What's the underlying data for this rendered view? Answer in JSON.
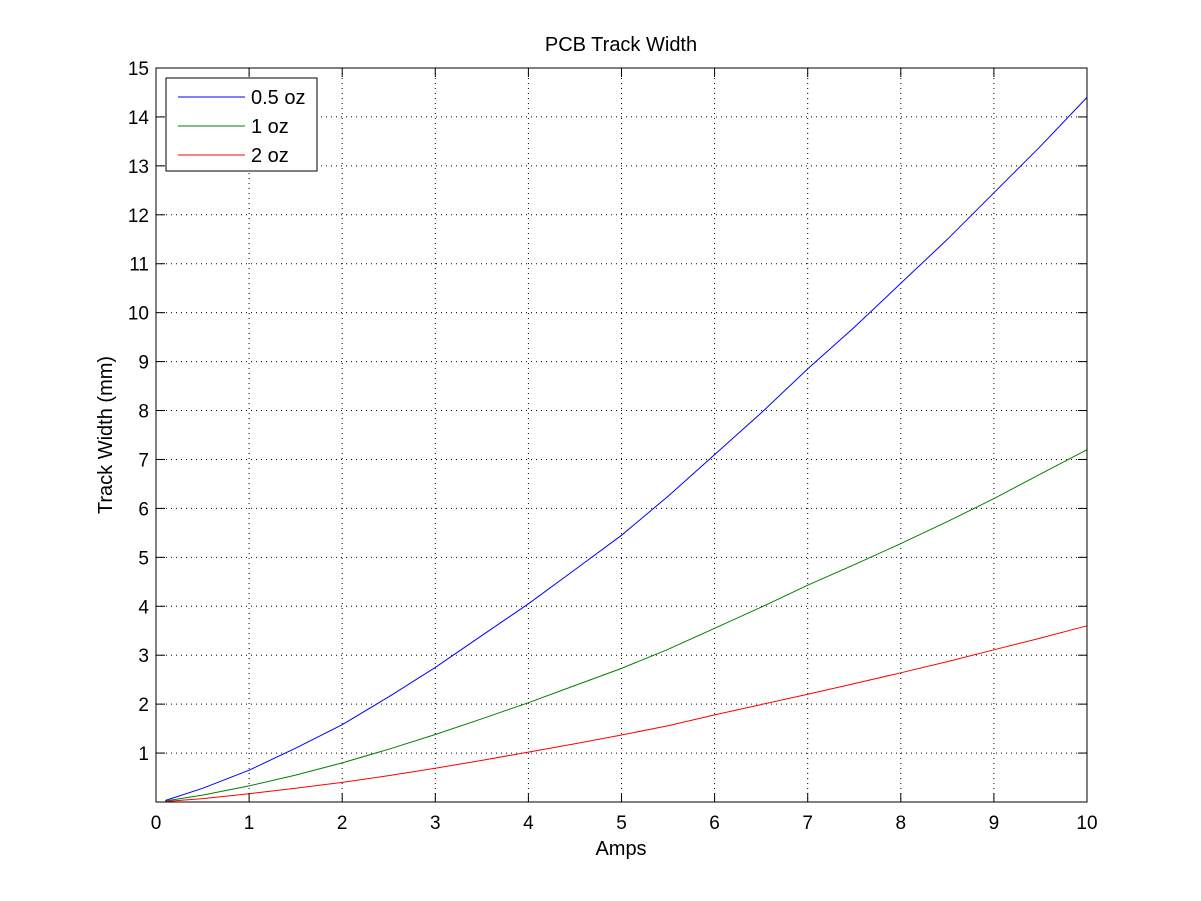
{
  "chart_data": {
    "type": "line",
    "title": "PCB Track Width",
    "xlabel": "Amps",
    "ylabel": "Track Width (mm)",
    "xlim": [
      0,
      10
    ],
    "ylim": [
      0,
      15
    ],
    "xticks": [
      0,
      1,
      2,
      3,
      4,
      5,
      6,
      7,
      8,
      9,
      10
    ],
    "yticks": [
      1,
      2,
      3,
      4,
      5,
      6,
      7,
      8,
      9,
      10,
      11,
      12,
      13,
      14,
      15
    ],
    "grid": true,
    "legend_position": "top-left",
    "x": [
      0.1,
      0.5,
      1,
      1.5,
      2,
      2.5,
      3,
      3.5,
      4,
      4.5,
      5,
      5.5,
      6,
      6.5,
      7,
      7.5,
      8,
      8.5,
      9,
      9.5,
      10
    ],
    "series": [
      {
        "name": "0.5 oz",
        "color": "#0000ff",
        "values": [
          0.03,
          0.28,
          0.65,
          1.1,
          1.58,
          2.15,
          2.75,
          3.4,
          4.05,
          4.75,
          5.45,
          6.25,
          7.1,
          7.95,
          8.85,
          9.7,
          10.6,
          11.5,
          12.45,
          13.4,
          14.4
        ]
      },
      {
        "name": "1 oz",
        "color": "#008000",
        "values": [
          0.02,
          0.14,
          0.33,
          0.55,
          0.8,
          1.08,
          1.38,
          1.7,
          2.03,
          2.38,
          2.73,
          3.12,
          3.55,
          3.98,
          4.43,
          4.85,
          5.28,
          5.73,
          6.2,
          6.7,
          7.2
        ]
      },
      {
        "name": "2 oz",
        "color": "#ff0000",
        "values": [
          0.01,
          0.07,
          0.17,
          0.28,
          0.4,
          0.54,
          0.69,
          0.85,
          1.02,
          1.19,
          1.37,
          1.56,
          1.78,
          1.99,
          2.2,
          2.42,
          2.64,
          2.87,
          3.11,
          3.35,
          3.6
        ]
      }
    ]
  }
}
